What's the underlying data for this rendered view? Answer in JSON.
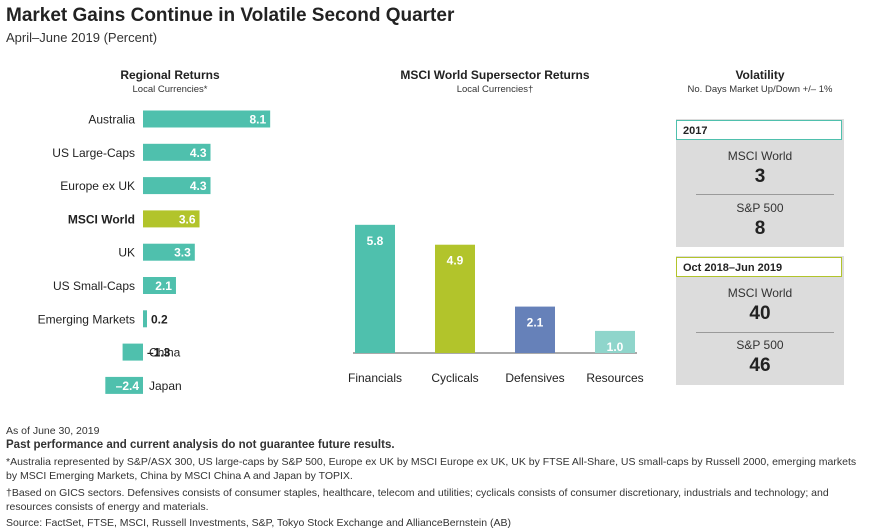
{
  "title": "Market Gains Continue in Volatile Second Quarter",
  "subtitle": "April–June 2019 (Percent)",
  "colors": {
    "teal": "#4fc0ad",
    "green": "#b2c42b",
    "blue": "#6681b9",
    "lightteal": "#8fd5cb",
    "box_gray": "#dcdcdc"
  },
  "chart_data": [
    {
      "type": "bar",
      "orientation": "horizontal",
      "title": "Regional Returns",
      "subtitle": "Local Currencies*",
      "categories": [
        "Australia",
        "US Large-Caps",
        "Europe ex UK",
        "MSCI World",
        "UK",
        "US Small-Caps",
        "Emerging Markets",
        "China",
        "Japan"
      ],
      "values": [
        8.1,
        4.3,
        4.3,
        3.6,
        3.3,
        2.1,
        0.2,
        -1.3,
        -2.4
      ],
      "value_labels": [
        "8.1",
        "4.3",
        "4.3",
        "3.6",
        "3.3",
        "2.1",
        "0.2",
        "–1.3",
        "–2.4"
      ],
      "highlight": "MSCI World"
    },
    {
      "type": "bar",
      "orientation": "vertical",
      "title": "MSCI World Supersector Returns",
      "subtitle": "Local Currencies†",
      "categories": [
        "Financials",
        "Cyclicals",
        "Defensives",
        "Resources"
      ],
      "values": [
        5.8,
        4.9,
        2.1,
        1.0
      ],
      "value_labels": [
        "5.8",
        "4.9",
        "2.1",
        "1.0"
      ]
    }
  ],
  "volatility": {
    "title": "Volatility",
    "subtitle": "No. Days Market Up/Down +/– 1%",
    "periods": [
      {
        "label": "2017",
        "rows": [
          {
            "name": "MSCI World",
            "value": "3"
          },
          {
            "name": "S&P 500",
            "value": "8"
          }
        ]
      },
      {
        "label": "Oct 2018–Jun 2019",
        "rows": [
          {
            "name": "MSCI World",
            "value": "40"
          },
          {
            "name": "S&P 500",
            "value": "46"
          }
        ]
      }
    ]
  },
  "notes": {
    "as_of": "As of June 30, 2019",
    "disclaimer": "Past performance and current analysis do not guarantee future results.",
    "footnote1": "*Australia represented by S&P/ASX 300, US large-caps by S&P 500, Europe ex UK by MSCI Europe ex UK, UK by FTSE All-Share, US small-caps by Russell 2000, emerging markets by MSCI Emerging Markets, China by MSCI China A and Japan by TOPIX.",
    "footnote2": "†Based on GICS sectors. Defensives consists of consumer staples, healthcare, telecom and utilities; cyclicals consists of consumer discretionary, industrials and technology; and resources consists of energy and materials.",
    "source": "Source: FactSet, FTSE, MSCI, Russell Investments, S&P, Tokyo Stock Exchange and AllianceBernstein (AB)"
  }
}
